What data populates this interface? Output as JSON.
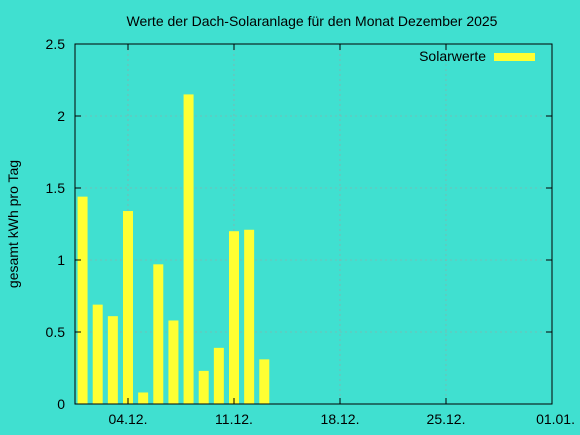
{
  "chart_data": {
    "type": "bar",
    "title": "Werte der Dach-Solaranlage für den Monat Dezember 2025",
    "xlabel": "",
    "ylabel": "gesamt kWh pro Tag",
    "ylim": [
      0,
      2.5
    ],
    "yticks": [
      0,
      0.5,
      1,
      1.5,
      2,
      2.5
    ],
    "ytick_labels": [
      "0",
      "0.5",
      "1",
      "1.5",
      "2",
      "2.5"
    ],
    "xlim_days": [
      0.5,
      32
    ],
    "xticks": [
      {
        "day": 4,
        "label": "04.12."
      },
      {
        "day": 11,
        "label": "11.12."
      },
      {
        "day": 18,
        "label": "18.12."
      },
      {
        "day": 25,
        "label": "25.12."
      },
      {
        "day": 32,
        "label": "01.01."
      }
    ],
    "grid": true,
    "legend_position": "top-right",
    "series": [
      {
        "name": "Solarwerte",
        "color": "#ffff33",
        "days": [
          1,
          2,
          3,
          4,
          5,
          6,
          7,
          8,
          9,
          10,
          11,
          12,
          13
        ],
        "values": [
          1.44,
          0.69,
          0.61,
          1.34,
          0.08,
          0.97,
          0.58,
          2.15,
          0.23,
          0.39,
          1.2,
          1.21,
          0.31
        ]
      }
    ],
    "background_color": "#40e0d0"
  }
}
